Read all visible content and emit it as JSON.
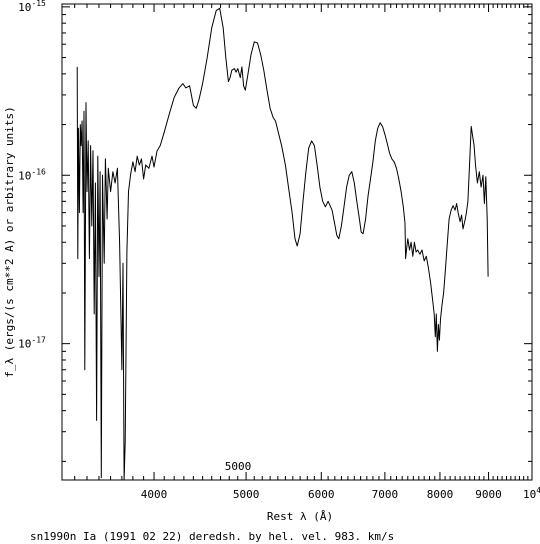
{
  "chart_data": {
    "type": "line",
    "xlabel": "Rest λ (Å)",
    "ylabel": "f_λ (ergs/(s cm**2 A) or arbitrary units)",
    "caption": "sn1990n Ia (1991 02 22) deredsh. by hel. vel.   983. km/s",
    "annotation": "5000",
    "xscale": "log",
    "yscale": "log",
    "xlim": [
      3200,
      10000
    ],
    "ylim": [
      1.55e-18,
      1.04e-15
    ],
    "xticks": [
      {
        "value": 4000,
        "label": "4000"
      },
      {
        "value": 5000,
        "label": "5000"
      },
      {
        "value": 6000,
        "label": "6000"
      },
      {
        "value": 7000,
        "label": "7000"
      },
      {
        "value": 8000,
        "label": "8000"
      },
      {
        "value": 9000,
        "label": "9000"
      },
      {
        "value": 10000,
        "label": "10",
        "sup": "4"
      }
    ],
    "yticks": [
      {
        "value": 1e-15,
        "label": "10",
        "sup": "-15"
      },
      {
        "value": 1e-16,
        "label": "10",
        "sup": "-16"
      },
      {
        "value": 1e-17,
        "label": "10",
        "sup": "-17"
      }
    ],
    "series": [
      {
        "color": "#000000",
        "points": [
          [
            3320,
            4.4e-16
          ],
          [
            3325,
            3.2e-17
          ],
          [
            3330,
            1.9e-16
          ],
          [
            3338,
            6e-17
          ],
          [
            3345,
            2e-16
          ],
          [
            3352,
            1.5e-16
          ],
          [
            3360,
            2.1e-16
          ],
          [
            3368,
            6e-17
          ],
          [
            3375,
            2.4e-16
          ],
          [
            3382,
            7e-18
          ],
          [
            3392,
            2.7e-16
          ],
          [
            3400,
            8e-17
          ],
          [
            3410,
            1.6e-16
          ],
          [
            3420,
            3.2e-17
          ],
          [
            3430,
            1.5e-16
          ],
          [
            3440,
            5e-17
          ],
          [
            3450,
            1.4e-16
          ],
          [
            3460,
            1.5e-17
          ],
          [
            3470,
            9e-17
          ],
          [
            3480,
            3.5e-18
          ],
          [
            3490,
            1.3e-16
          ],
          [
            3500,
            2.5e-17
          ],
          [
            3510,
            1.05e-16
          ],
          [
            3520,
            1.6e-18
          ],
          [
            3530,
            1e-16
          ],
          [
            3545,
            3e-17
          ],
          [
            3555,
            1.25e-16
          ],
          [
            3570,
            5.5e-17
          ],
          [
            3580,
            1.1e-16
          ],
          [
            3600,
            8e-17
          ],
          [
            3620,
            1.05e-16
          ],
          [
            3640,
            9e-17
          ],
          [
            3660,
            1.1e-16
          ],
          [
            3680,
            4e-17
          ],
          [
            3700,
            7e-18
          ],
          [
            3710,
            3e-17
          ],
          [
            3720,
            1.5e-18
          ],
          [
            3730,
            2.6e-18
          ],
          [
            3745,
            3.5e-17
          ],
          [
            3760,
            8e-17
          ],
          [
            3780,
            1.02e-16
          ],
          [
            3800,
            1.2e-16
          ],
          [
            3820,
            1.05e-16
          ],
          [
            3840,
            1.3e-16
          ],
          [
            3860,
            1.15e-16
          ],
          [
            3880,
            1.25e-16
          ],
          [
            3900,
            9.5e-17
          ],
          [
            3920,
            1.15e-16
          ],
          [
            3950,
            1.1e-16
          ],
          [
            3980,
            1.3e-16
          ],
          [
            4000,
            1.12e-16
          ],
          [
            4030,
            1.4e-16
          ],
          [
            4060,
            1.5e-16
          ],
          [
            4100,
            1.8e-16
          ],
          [
            4150,
            2.3e-16
          ],
          [
            4200,
            2.9e-16
          ],
          [
            4250,
            3.3e-16
          ],
          [
            4290,
            3.5e-16
          ],
          [
            4320,
            3.3e-16
          ],
          [
            4360,
            3.4e-16
          ],
          [
            4400,
            2.6e-16
          ],
          [
            4430,
            2.5e-16
          ],
          [
            4460,
            2.8e-16
          ],
          [
            4500,
            3.5e-16
          ],
          [
            4550,
            5e-16
          ],
          [
            4600,
            7.5e-16
          ],
          [
            4650,
            9.5e-16
          ],
          [
            4690,
            9.8e-16
          ],
          [
            4730,
            7.5e-16
          ],
          [
            4760,
            5e-16
          ],
          [
            4790,
            3.6e-16
          ],
          [
            4810,
            3.8e-16
          ],
          [
            4830,
            4.2e-16
          ],
          [
            4860,
            4.3e-16
          ],
          [
            4880,
            4.1e-16
          ],
          [
            4900,
            4.3e-16
          ],
          [
            4930,
            3.8e-16
          ],
          [
            4950,
            4.4e-16
          ],
          [
            4970,
            3.4e-16
          ],
          [
            4990,
            3.2e-16
          ],
          [
            5020,
            3.9e-16
          ],
          [
            5060,
            5.2e-16
          ],
          [
            5100,
            6.2e-16
          ],
          [
            5140,
            6.1e-16
          ],
          [
            5180,
            5.2e-16
          ],
          [
            5220,
            4.2e-16
          ],
          [
            5260,
            3.2e-16
          ],
          [
            5300,
            2.5e-16
          ],
          [
            5340,
            2.2e-16
          ],
          [
            5370,
            2.1e-16
          ],
          [
            5400,
            1.85e-16
          ],
          [
            5450,
            1.5e-16
          ],
          [
            5500,
            1.15e-16
          ],
          [
            5550,
            8e-17
          ],
          [
            5590,
            6e-17
          ],
          [
            5630,
            4.2e-17
          ],
          [
            5660,
            3.8e-17
          ],
          [
            5700,
            4.5e-17
          ],
          [
            5740,
            7e-17
          ],
          [
            5780,
            1.05e-16
          ],
          [
            5820,
            1.45e-16
          ],
          [
            5860,
            1.6e-16
          ],
          [
            5900,
            1.5e-16
          ],
          [
            5940,
            1.15e-16
          ],
          [
            5980,
            8.5e-17
          ],
          [
            6020,
            7e-17
          ],
          [
            6060,
            6.5e-17
          ],
          [
            6100,
            7e-17
          ],
          [
            6130,
            6.6e-17
          ],
          [
            6160,
            6.2e-17
          ],
          [
            6200,
            5.1e-17
          ],
          [
            6230,
            4.4e-17
          ],
          [
            6260,
            4.2e-17
          ],
          [
            6300,
            5e-17
          ],
          [
            6340,
            6.5e-17
          ],
          [
            6380,
            8.5e-17
          ],
          [
            6420,
            1e-16
          ],
          [
            6460,
            1.05e-16
          ],
          [
            6500,
            9e-17
          ],
          [
            6540,
            7e-17
          ],
          [
            6580,
            5.5e-17
          ],
          [
            6610,
            4.6e-17
          ],
          [
            6640,
            4.5e-17
          ],
          [
            6680,
            5.5e-17
          ],
          [
            6720,
            7.5e-17
          ],
          [
            6760,
            9.5e-17
          ],
          [
            6800,
            1.2e-16
          ],
          [
            6840,
            1.6e-16
          ],
          [
            6880,
            1.9e-16
          ],
          [
            6920,
            2.05e-16
          ],
          [
            6960,
            1.95e-16
          ],
          [
            7000,
            1.75e-16
          ],
          [
            7040,
            1.55e-16
          ],
          [
            7080,
            1.35e-16
          ],
          [
            7120,
            1.25e-16
          ],
          [
            7160,
            1.2e-16
          ],
          [
            7200,
            1.1e-16
          ],
          [
            7240,
            9.5e-17
          ],
          [
            7280,
            8e-17
          ],
          [
            7320,
            6.5e-17
          ],
          [
            7350,
            5.2e-17
          ],
          [
            7360,
            3.2e-17
          ],
          [
            7380,
            3.7e-17
          ],
          [
            7400,
            4.2e-17
          ],
          [
            7430,
            3.6e-17
          ],
          [
            7460,
            4e-17
          ],
          [
            7490,
            3.3e-17
          ],
          [
            7520,
            4e-17
          ],
          [
            7550,
            3.5e-17
          ],
          [
            7580,
            3.6e-17
          ],
          [
            7620,
            3.4e-17
          ],
          [
            7660,
            3.6e-17
          ],
          [
            7700,
            3.1e-17
          ],
          [
            7740,
            3.3e-17
          ],
          [
            7780,
            2.8e-17
          ],
          [
            7820,
            2.3e-17
          ],
          [
            7860,
            1.8e-17
          ],
          [
            7890,
            1.5e-17
          ],
          [
            7910,
            1.1e-17
          ],
          [
            7930,
            1.5e-17
          ],
          [
            7950,
            9e-18
          ],
          [
            7970,
            1.3e-17
          ],
          [
            7990,
            1.05e-17
          ],
          [
            8010,
            1.4e-17
          ],
          [
            8040,
            1.7e-17
          ],
          [
            8070,
            2e-17
          ],
          [
            8100,
            2.6e-17
          ],
          [
            8140,
            3.8e-17
          ],
          [
            8180,
            5.5e-17
          ],
          [
            8220,
            6.2e-17
          ],
          [
            8260,
            6.6e-17
          ],
          [
            8300,
            6.2e-17
          ],
          [
            8330,
            6.8e-17
          ],
          [
            8360,
            6e-17
          ],
          [
            8400,
            5.3e-17
          ],
          [
            8430,
            5.8e-17
          ],
          [
            8460,
            4.8e-17
          ],
          [
            8500,
            5.4e-17
          ],
          [
            8530,
            6e-17
          ],
          [
            8560,
            7e-17
          ],
          [
            8600,
            1.25e-16
          ],
          [
            8630,
            1.95e-16
          ],
          [
            8660,
            1.7e-16
          ],
          [
            8690,
            1.5e-16
          ],
          [
            8720,
            1.15e-16
          ],
          [
            8760,
            9e-17
          ],
          [
            8800,
            1.05e-16
          ],
          [
            8840,
            8.5e-17
          ],
          [
            8880,
            1e-16
          ],
          [
            8910,
            6.8e-17
          ],
          [
            8940,
            9.8e-17
          ],
          [
            8970,
            5.5e-17
          ],
          [
            8990,
            2.5e-17
          ]
        ]
      }
    ]
  }
}
